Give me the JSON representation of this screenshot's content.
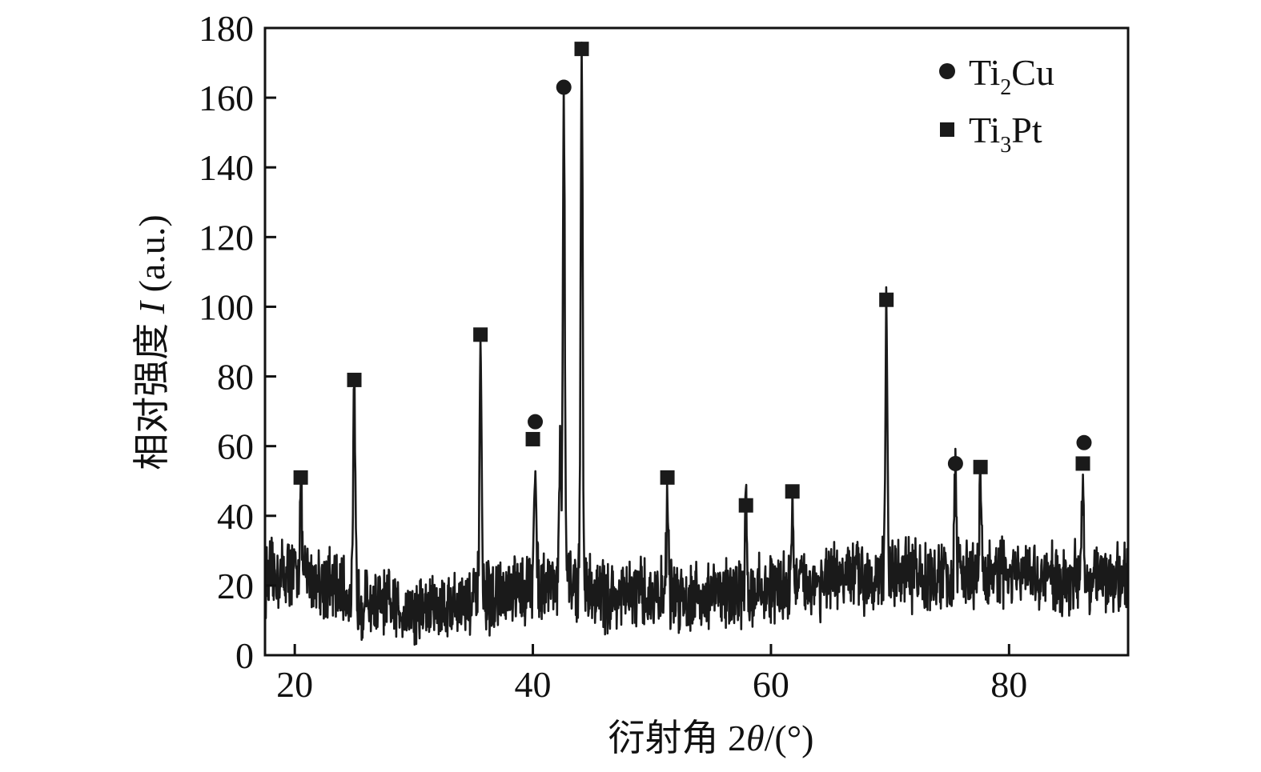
{
  "chart_data": {
    "type": "line",
    "xlabel_prefix": "衍射角 2",
    "xlabel_symbol": "θ",
    "xlabel_suffix": "/(°)",
    "ylabel_prefix": "相对强度 ",
    "ylabel_symbol": "I",
    "ylabel_suffix": " (a.u.)",
    "xlim": [
      17.5,
      90
    ],
    "ylim": [
      0,
      180
    ],
    "x_ticks": [
      20,
      40,
      60,
      80
    ],
    "y_ticks": [
      0,
      20,
      40,
      60,
      80,
      100,
      120,
      140,
      160,
      180
    ],
    "grid": false,
    "legend_position": "top-right",
    "legend": [
      {
        "marker": "circle",
        "label_base": "Ti",
        "label_sub": "2",
        "label_tail": "Cu"
      },
      {
        "marker": "square",
        "label_base": "Ti",
        "label_sub": "3",
        "label_tail": "Pt"
      }
    ],
    "baseline": [
      [
        17.5,
        22
      ],
      [
        20,
        24
      ],
      [
        22,
        22
      ],
      [
        24,
        18
      ],
      [
        26,
        15
      ],
      [
        28,
        14
      ],
      [
        30,
        13
      ],
      [
        32,
        14
      ],
      [
        34,
        15
      ],
      [
        36,
        16
      ],
      [
        38,
        17
      ],
      [
        40,
        20
      ],
      [
        42,
        22
      ],
      [
        44,
        20
      ],
      [
        46,
        17
      ],
      [
        48,
        17
      ],
      [
        50,
        17
      ],
      [
        52,
        17
      ],
      [
        54,
        17
      ],
      [
        56,
        18
      ],
      [
        58,
        18
      ],
      [
        60,
        19
      ],
      [
        62,
        20
      ],
      [
        64,
        21
      ],
      [
        66,
        22
      ],
      [
        68,
        23
      ],
      [
        70,
        23
      ],
      [
        72,
        23
      ],
      [
        74,
        22
      ],
      [
        76,
        23
      ],
      [
        78,
        23
      ],
      [
        80,
        23
      ],
      [
        82,
        22
      ],
      [
        84,
        22
      ],
      [
        86,
        22
      ],
      [
        88,
        22
      ],
      [
        90,
        23
      ]
    ],
    "peaks": [
      {
        "x": 20.5,
        "y": 47
      },
      {
        "x": 25.0,
        "y": 74
      },
      {
        "x": 35.6,
        "y": 89
      },
      {
        "x": 40.2,
        "y": 59
      },
      {
        "x": 42.3,
        "y": 57
      },
      {
        "x": 42.6,
        "y": 159
      },
      {
        "x": 44.1,
        "y": 171
      },
      {
        "x": 51.3,
        "y": 48
      },
      {
        "x": 57.9,
        "y": 40
      },
      {
        "x": 61.8,
        "y": 44
      },
      {
        "x": 69.7,
        "y": 99
      },
      {
        "x": 75.5,
        "y": 52
      },
      {
        "x": 77.6,
        "y": 51
      },
      {
        "x": 86.2,
        "y": 52
      }
    ],
    "markers": [
      {
        "x": 20.5,
        "y": 51,
        "phase": "Ti3Pt"
      },
      {
        "x": 25.0,
        "y": 79,
        "phase": "Ti3Pt"
      },
      {
        "x": 35.6,
        "y": 92,
        "phase": "Ti3Pt"
      },
      {
        "x": 40.2,
        "y": 67,
        "phase": "Ti2Cu"
      },
      {
        "x": 40.0,
        "y": 62,
        "phase": "Ti3Pt"
      },
      {
        "x": 42.6,
        "y": 163,
        "phase": "Ti2Cu"
      },
      {
        "x": 44.1,
        "y": 174,
        "phase": "Ti3Pt"
      },
      {
        "x": 51.3,
        "y": 51,
        "phase": "Ti3Pt"
      },
      {
        "x": 57.9,
        "y": 43,
        "phase": "Ti3Pt"
      },
      {
        "x": 61.8,
        "y": 47,
        "phase": "Ti3Pt"
      },
      {
        "x": 69.7,
        "y": 102,
        "phase": "Ti3Pt"
      },
      {
        "x": 75.5,
        "y": 55,
        "phase": "Ti2Cu"
      },
      {
        "x": 77.6,
        "y": 54,
        "phase": "Ti3Pt"
      },
      {
        "x": 86.3,
        "y": 61,
        "phase": "Ti2Cu"
      },
      {
        "x": 86.2,
        "y": 55,
        "phase": "Ti3Pt"
      }
    ],
    "colors": {
      "line": "#1a1a1a",
      "marker": "#1a1a1a",
      "axis": "#111111"
    }
  }
}
